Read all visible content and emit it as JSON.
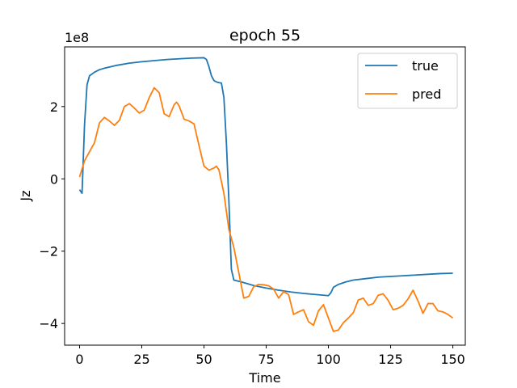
{
  "chart_data": {
    "type": "line",
    "title": "epoch 55",
    "xlabel": "Time",
    "ylabel": "Jz",
    "y_offset_label": "1e8",
    "xlim": [
      -6,
      155
    ],
    "ylim": [
      -460000000,
      365000000
    ],
    "x_ticks": [
      0,
      25,
      50,
      75,
      100,
      125,
      150
    ],
    "x_tick_labels": [
      "0",
      "25",
      "50",
      "75",
      "100",
      "125",
      "150"
    ],
    "y_ticks": [
      200000000,
      0,
      -200000000,
      -400000000
    ],
    "y_tick_labels": [
      "2",
      "0",
      "−2",
      "−4"
    ],
    "legend_position": "upper-right",
    "grid": false,
    "series": [
      {
        "name": "true",
        "color": "#1f77b4",
        "points": [
          [
            0,
            -30000000
          ],
          [
            1,
            -40000000
          ],
          [
            2,
            150000000
          ],
          [
            3,
            260000000
          ],
          [
            4,
            285000000
          ],
          [
            6,
            295000000
          ],
          [
            8,
            302000000
          ],
          [
            10,
            306000000
          ],
          [
            15,
            314000000
          ],
          [
            20,
            320000000
          ],
          [
            25,
            324000000
          ],
          [
            30,
            327000000
          ],
          [
            35,
            330000000
          ],
          [
            40,
            332000000
          ],
          [
            45,
            334000000
          ],
          [
            50,
            335000000
          ],
          [
            51,
            330000000
          ],
          [
            52,
            310000000
          ],
          [
            53,
            285000000
          ],
          [
            54,
            272000000
          ],
          [
            55,
            268000000
          ],
          [
            56,
            266000000
          ],
          [
            57,
            265000000
          ],
          [
            58,
            225000000
          ],
          [
            59,
            100000000
          ],
          [
            60,
            -60000000
          ],
          [
            61,
            -250000000
          ],
          [
            62,
            -280000000
          ],
          [
            65,
            -285000000
          ],
          [
            70,
            -295000000
          ],
          [
            75,
            -302000000
          ],
          [
            80,
            -308000000
          ],
          [
            85,
            -313000000
          ],
          [
            90,
            -317000000
          ],
          [
            95,
            -320000000
          ],
          [
            100,
            -323000000
          ],
          [
            101,
            -315000000
          ],
          [
            102,
            -300000000
          ],
          [
            104,
            -292000000
          ],
          [
            107,
            -285000000
          ],
          [
            110,
            -280000000
          ],
          [
            115,
            -276000000
          ],
          [
            120,
            -272000000
          ],
          [
            125,
            -270000000
          ],
          [
            130,
            -268000000
          ],
          [
            135,
            -266000000
          ],
          [
            140,
            -264000000
          ],
          [
            145,
            -262000000
          ],
          [
            150,
            -261000000
          ]
        ]
      },
      {
        "name": "pred",
        "color": "#ff7f0e",
        "points": [
          [
            0,
            5000000
          ],
          [
            2,
            50000000
          ],
          [
            4,
            75000000
          ],
          [
            6,
            100000000
          ],
          [
            8,
            155000000
          ],
          [
            10,
            170000000
          ],
          [
            12,
            160000000
          ],
          [
            14,
            148000000
          ],
          [
            16,
            162000000
          ],
          [
            18,
            200000000
          ],
          [
            20,
            208000000
          ],
          [
            22,
            196000000
          ],
          [
            24,
            182000000
          ],
          [
            26,
            190000000
          ],
          [
            28,
            225000000
          ],
          [
            30,
            252000000
          ],
          [
            32,
            238000000
          ],
          [
            34,
            180000000
          ],
          [
            36,
            172000000
          ],
          [
            38,
            205000000
          ],
          [
            39,
            212000000
          ],
          [
            40,
            202000000
          ],
          [
            42,
            165000000
          ],
          [
            44,
            160000000
          ],
          [
            46,
            152000000
          ],
          [
            48,
            92000000
          ],
          [
            50,
            35000000
          ],
          [
            52,
            24000000
          ],
          [
            54,
            30000000
          ],
          [
            55,
            35000000
          ],
          [
            56,
            25000000
          ],
          [
            58,
            -40000000
          ],
          [
            60,
            -140000000
          ],
          [
            62,
            -190000000
          ],
          [
            64,
            -260000000
          ],
          [
            66,
            -330000000
          ],
          [
            68,
            -325000000
          ],
          [
            70,
            -298000000
          ],
          [
            72,
            -292000000
          ],
          [
            74,
            -293000000
          ],
          [
            76,
            -296000000
          ],
          [
            78,
            -305000000
          ],
          [
            80,
            -330000000
          ],
          [
            82,
            -312000000
          ],
          [
            84,
            -320000000
          ],
          [
            86,
            -375000000
          ],
          [
            88,
            -368000000
          ],
          [
            90,
            -362000000
          ],
          [
            92,
            -395000000
          ],
          [
            94,
            -405000000
          ],
          [
            96,
            -365000000
          ],
          [
            98,
            -348000000
          ],
          [
            100,
            -385000000
          ],
          [
            102,
            -422000000
          ],
          [
            104,
            -418000000
          ],
          [
            106,
            -398000000
          ],
          [
            108,
            -385000000
          ],
          [
            110,
            -370000000
          ],
          [
            112,
            -335000000
          ],
          [
            114,
            -330000000
          ],
          [
            116,
            -350000000
          ],
          [
            118,
            -345000000
          ],
          [
            120,
            -322000000
          ],
          [
            122,
            -318000000
          ],
          [
            124,
            -336000000
          ],
          [
            126,
            -362000000
          ],
          [
            128,
            -358000000
          ],
          [
            130,
            -350000000
          ],
          [
            132,
            -332000000
          ],
          [
            134,
            -308000000
          ],
          [
            136,
            -338000000
          ],
          [
            138,
            -372000000
          ],
          [
            140,
            -345000000
          ],
          [
            142,
            -345000000
          ],
          [
            144,
            -365000000
          ],
          [
            146,
            -368000000
          ],
          [
            148,
            -375000000
          ],
          [
            150,
            -385000000
          ]
        ]
      }
    ]
  }
}
